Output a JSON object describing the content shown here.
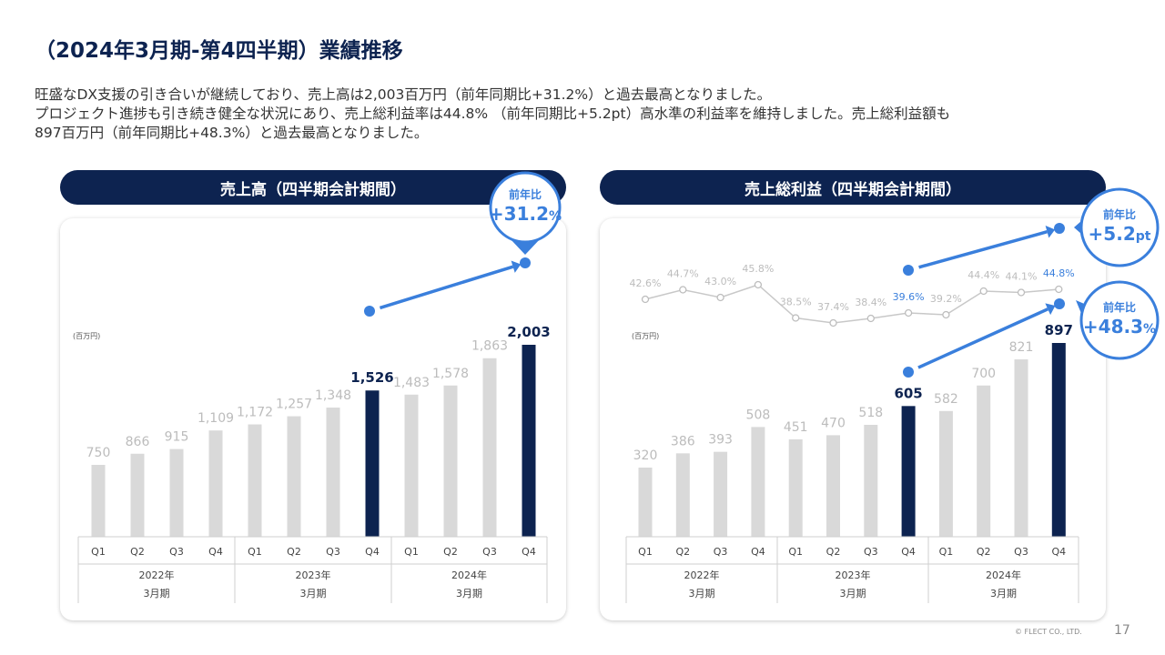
{
  "title": "（2024年3月期-第4四半期）業績推移",
  "description": [
    "旺盛なDX支援の引き合いが継続しており、売上高は2,003百万円（前年同期比+31.2%）と過去最高となりました。",
    "プロジェクト進捗も引き続き健全な状況にあり、売上総利益率は44.8% （前年同期比+5.2pt）高水準の利益率を維持しました。売上総利益額も",
    "897百万円（前年同期比+48.3%）と過去最高となりました。"
  ],
  "colors": {
    "navy": "#0d2350",
    "gray_bar": "#d9d9d9",
    "blue": "#3a7fdc",
    "gray_text": "#bcbcbc"
  },
  "footer": {
    "copyright": "© FLECT CO., LTD.",
    "page": "17"
  },
  "chart_data": [
    {
      "type": "bar",
      "title": "売上高（四半期会計期間）",
      "unit": "(百万円)",
      "categories": [
        "Q1",
        "Q2",
        "Q3",
        "Q4",
        "Q1",
        "Q2",
        "Q3",
        "Q4",
        "Q1",
        "Q2",
        "Q3",
        "Q4"
      ],
      "groups": [
        {
          "year": "2022年",
          "period": "3月期"
        },
        {
          "year": "2023年",
          "period": "3月期"
        },
        {
          "year": "2024年",
          "period": "3月期"
        }
      ],
      "values": [
        750,
        866,
        915,
        1109,
        1172,
        1257,
        1348,
        1526,
        1483,
        1578,
        1863,
        2003
      ],
      "value_labels": [
        "750",
        "866",
        "915",
        "1,109",
        "1,172",
        "1,257",
        "1,348",
        "1,526",
        "1,483",
        "1,578",
        "1,863",
        "2,003"
      ],
      "highlight_indices": [
        7,
        11
      ],
      "callout": {
        "label": "前年比",
        "value": "+31.2",
        "unit": "%"
      }
    },
    {
      "type": "bar",
      "title": "売上総利益（四半期会計期間）",
      "unit": "(百万円)",
      "categories": [
        "Q1",
        "Q2",
        "Q3",
        "Q4",
        "Q1",
        "Q2",
        "Q3",
        "Q4",
        "Q1",
        "Q2",
        "Q3",
        "Q4"
      ],
      "groups": [
        {
          "year": "2022年",
          "period": "3月期"
        },
        {
          "year": "2023年",
          "period": "3月期"
        },
        {
          "year": "2024年",
          "period": "3月期"
        }
      ],
      "values": [
        320,
        386,
        393,
        508,
        451,
        470,
        518,
        605,
        582,
        700,
        821,
        897
      ],
      "value_labels": [
        "320",
        "386",
        "393",
        "508",
        "451",
        "470",
        "518",
        "605",
        "582",
        "700",
        "821",
        "897"
      ],
      "highlight_indices": [
        7,
        11
      ],
      "margin_series": {
        "values": [
          42.6,
          44.7,
          43.0,
          45.8,
          38.5,
          37.4,
          38.4,
          39.6,
          39.2,
          44.4,
          44.1,
          44.8
        ],
        "labels": [
          "42.6%",
          "44.7%",
          "43.0%",
          "45.8%",
          "38.5%",
          "37.4%",
          "38.4%",
          "39.6%",
          "39.2%",
          "44.4%",
          "44.1%",
          "44.8%"
        ],
        "highlight_indices": [
          7,
          11
        ]
      },
      "callout_margin": {
        "label": "前年比",
        "value": "+5.2",
        "unit": "pt"
      },
      "callout": {
        "label": "前年比",
        "value": "+48.3",
        "unit": "%"
      }
    }
  ]
}
